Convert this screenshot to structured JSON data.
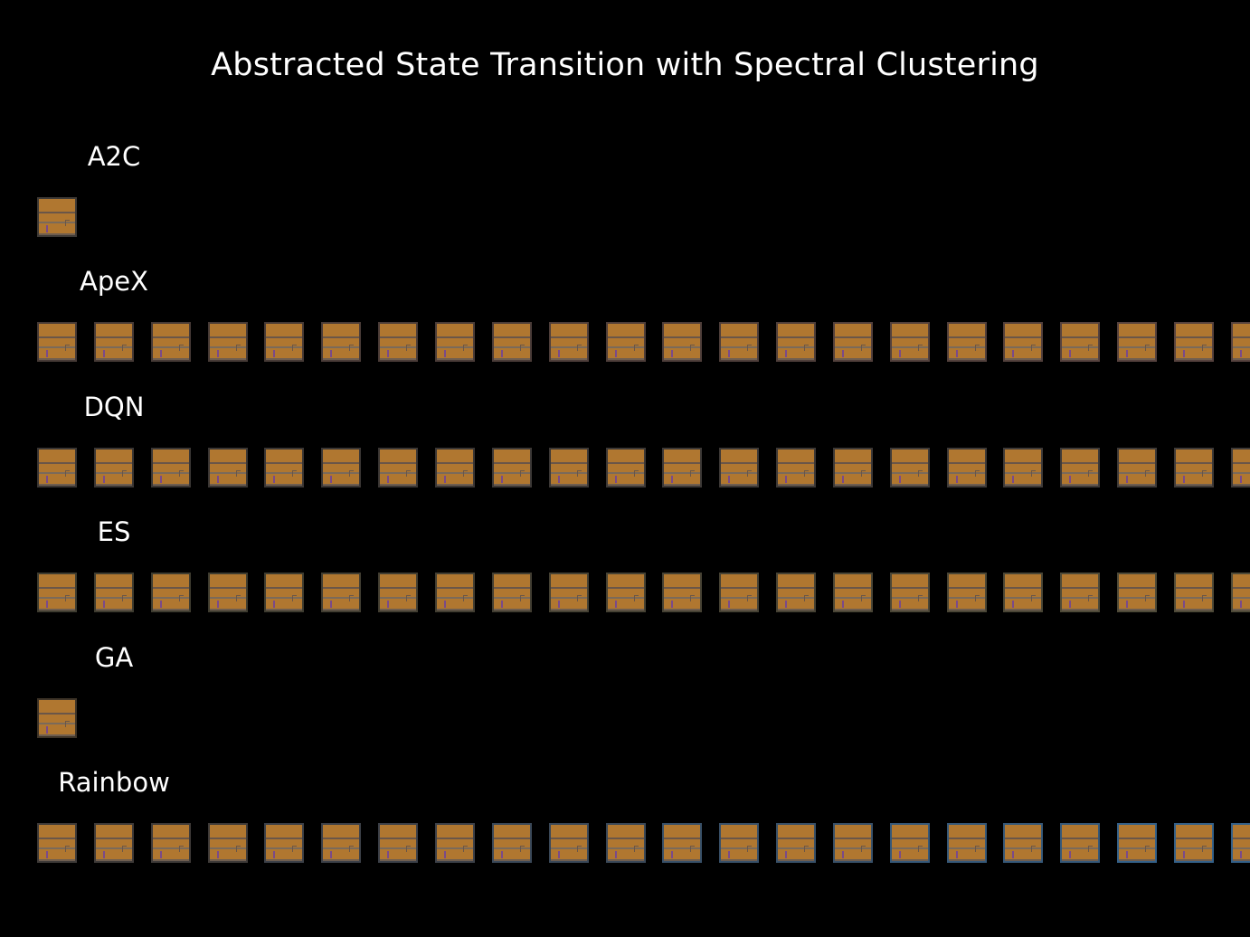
{
  "title": "Abstracted State Transition with Spectral Clustering",
  "rows": [
    {
      "label": "A2C",
      "count": 1,
      "border_colors": [
        "#3e3a36"
      ]
    },
    {
      "label": "ApeX",
      "count": 22,
      "border_colors": [
        "#463a36",
        "#4a3c38",
        "#4e3e3a",
        "#52403c",
        "#56423e"
      ]
    },
    {
      "label": "DQN",
      "count": 22,
      "border_colors": [
        "#3a3634",
        "#3c3836",
        "#3e3a38"
      ]
    },
    {
      "label": "ES",
      "count": 22,
      "border_colors": [
        "#3e3c30",
        "#423e32",
        "#464234",
        "#4a4636",
        "#4e4a38"
      ]
    },
    {
      "label": "GA",
      "count": 1,
      "border_colors": [
        "#3e3428"
      ]
    },
    {
      "label": "Rainbow",
      "count": 22,
      "border_colors": [
        "#3e3a38",
        "#3c4048",
        "#3a4858",
        "#385068",
        "#365878",
        "#346088"
      ]
    }
  ]
}
